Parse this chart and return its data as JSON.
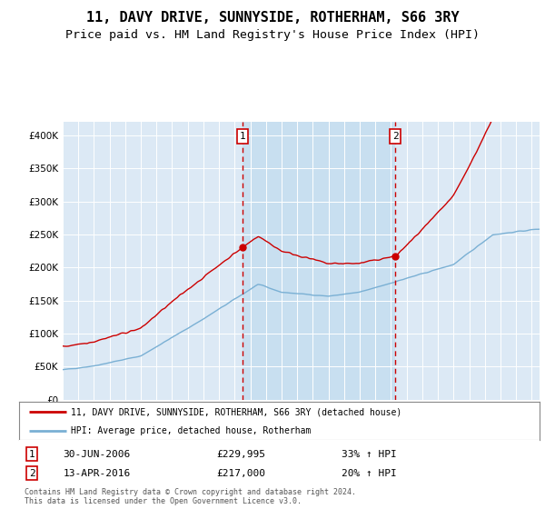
{
  "title": "11, DAVY DRIVE, SUNNYSIDE, ROTHERHAM, S66 3RY",
  "subtitle": "Price paid vs. HM Land Registry's House Price Index (HPI)",
  "legend_line1": "11, DAVY DRIVE, SUNNYSIDE, ROTHERHAM, S66 3RY (detached house)",
  "legend_line2": "HPI: Average price, detached house, Rotherham",
  "transaction1_date": "30-JUN-2006",
  "transaction1_price": "£229,995",
  "transaction1_hpi": "33% ↑ HPI",
  "transaction2_date": "13-APR-2016",
  "transaction2_price": "£217,000",
  "transaction2_hpi": "20% ↑ HPI",
  "sale1_year": 2006.5,
  "sale1_price": 229995,
  "sale2_year": 2016.28,
  "sale2_price": 217000,
  "ylim": [
    0,
    420000
  ],
  "xlim_start": 1995,
  "xlim_end": 2025.5,
  "plot_bg_color": "#dce9f5",
  "shade_color": "#c8dff0",
  "red_line_color": "#cc0000",
  "blue_line_color": "#7ab0d4",
  "footer_text": "Contains HM Land Registry data © Crown copyright and database right 2024.\nThis data is licensed under the Open Government Licence v3.0.",
  "title_fontsize": 11,
  "subtitle_fontsize": 9.5
}
